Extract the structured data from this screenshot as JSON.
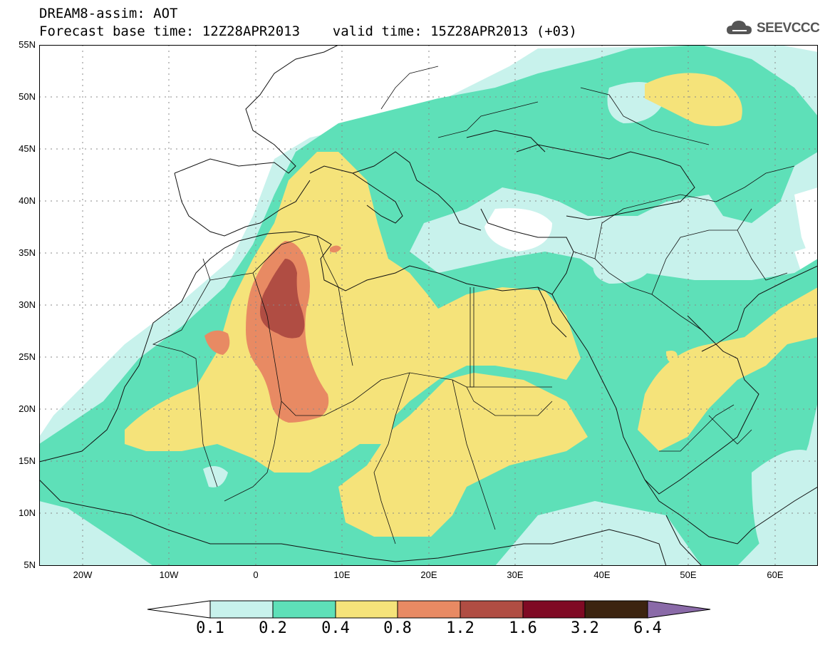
{
  "title": {
    "line1": "DREAM8-assim: AOT",
    "line2": "Forecast base time: 12Z28APR2013    valid time: 15Z28APR2013 (+03)"
  },
  "logo": {
    "text": "SEEVCCC",
    "icon": "cloud-icon"
  },
  "map": {
    "lat_labels": [
      "55N",
      "50N",
      "45N",
      "40N",
      "35N",
      "30N",
      "25N",
      "20N",
      "15N",
      "10N",
      "5N"
    ],
    "lon_labels": [
      "20W",
      "10W",
      "0",
      "10E",
      "20E",
      "30E",
      "40E",
      "50E",
      "60E"
    ],
    "lon_range": [
      -25,
      65
    ],
    "lat_range": [
      5,
      55
    ]
  },
  "legend": {
    "labels": [
      "0.1",
      "0.2",
      "0.4",
      "0.8",
      "1.2",
      "1.6",
      "3.2",
      "6.4"
    ],
    "colors": [
      "#ffffff",
      "#c8f2ec",
      "#5ee0b8",
      "#f5e37a",
      "#e88a63",
      "#b04d43",
      "#7f0a24",
      "#3c2410",
      "#8a6aa8"
    ]
  },
  "colors": {
    "c01": "#c8f2ec",
    "c02": "#5ee0b8",
    "c04": "#f5e37a",
    "c08": "#e88a63",
    "c12": "#b04d43"
  }
}
